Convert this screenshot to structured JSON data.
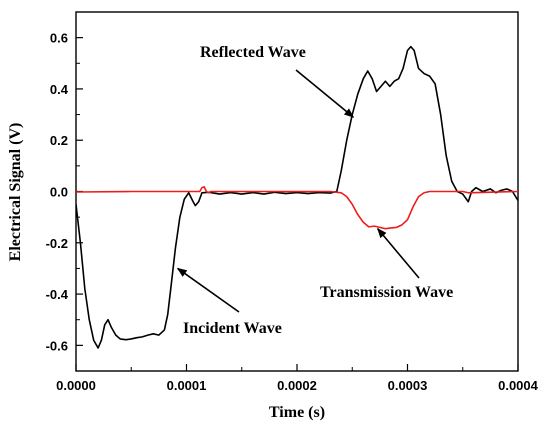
{
  "chart_data": {
    "type": "line",
    "title": "",
    "xlabel": "Time (s)",
    "ylabel": "Electrical Signal (V)",
    "xlim": [
      0,
      0.0004
    ],
    "ylim": [
      -0.7,
      0.7
    ],
    "grid": false,
    "legend": "none",
    "x_ticks": [
      0,
      0.0001,
      0.0002,
      0.0003,
      0.0004
    ],
    "x_tick_labels": [
      "0.0000",
      "0.0001",
      "0.0002",
      "0.0003",
      "0.0004"
    ],
    "y_ticks": [
      -0.6,
      -0.4,
      -0.2,
      0.0,
      0.2,
      0.4,
      0.6
    ],
    "y_tick_labels": [
      "-0.6",
      "-0.4",
      "-0.2",
      "0.0",
      "0.2",
      "0.4",
      "0.6"
    ],
    "series": [
      {
        "color": "#000000",
        "points": [
          [
            0,
            -0.05
          ],
          [
            4e-06,
            -0.2
          ],
          [
            8e-06,
            -0.38
          ],
          [
            1.2e-05,
            -0.5
          ],
          [
            1.6e-05,
            -0.58
          ],
          [
            2e-05,
            -0.61
          ],
          [
            2.3e-05,
            -0.58
          ],
          [
            2.6e-05,
            -0.52
          ],
          [
            2.9e-05,
            -0.5
          ],
          [
            3.2e-05,
            -0.53
          ],
          [
            3.6e-05,
            -0.56
          ],
          [
            4e-05,
            -0.575
          ],
          [
            4.5e-05,
            -0.578
          ],
          [
            5e-05,
            -0.575
          ],
          [
            5.5e-05,
            -0.57
          ],
          [
            6e-05,
            -0.567
          ],
          [
            6.5e-05,
            -0.56
          ],
          [
            7e-05,
            -0.555
          ],
          [
            7.5e-05,
            -0.56
          ],
          [
            8e-05,
            -0.54
          ],
          [
            8.3e-05,
            -0.48
          ],
          [
            8.6e-05,
            -0.37
          ],
          [
            9e-05,
            -0.22
          ],
          [
            9.4e-05,
            -0.1
          ],
          [
            9.8e-05,
            -0.03
          ],
          [
            0.000102,
            -0.005
          ],
          [
            0.000106,
            -0.04
          ],
          [
            0.000108,
            -0.055
          ],
          [
            0.000111,
            -0.04
          ],
          [
            0.000114,
            -0.005
          ],
          [
            0.00012,
            -0.003
          ],
          [
            0.00013,
            -0.01
          ],
          [
            0.00014,
            -0.004
          ],
          [
            0.00015,
            -0.01
          ],
          [
            0.00016,
            -0.004
          ],
          [
            0.00017,
            -0.01
          ],
          [
            0.00018,
            -0.003
          ],
          [
            0.00019,
            -0.008
          ],
          [
            0.0002,
            -0.004
          ],
          [
            0.00021,
            -0.008
          ],
          [
            0.00022,
            -0.004
          ],
          [
            0.00023,
            -0.006
          ],
          [
            0.000236,
            0.0
          ],
          [
            0.00024,
            0.08
          ],
          [
            0.000245,
            0.2
          ],
          [
            0.00025,
            0.3
          ],
          [
            0.000255,
            0.38
          ],
          [
            0.00026,
            0.44
          ],
          [
            0.000264,
            0.47
          ],
          [
            0.000268,
            0.44
          ],
          [
            0.000272,
            0.39
          ],
          [
            0.000276,
            0.41
          ],
          [
            0.00028,
            0.43
          ],
          [
            0.000284,
            0.41
          ],
          [
            0.000288,
            0.43
          ],
          [
            0.000292,
            0.44
          ],
          [
            0.000296,
            0.48
          ],
          [
            0.0003,
            0.55
          ],
          [
            0.000303,
            0.565
          ],
          [
            0.000306,
            0.55
          ],
          [
            0.00031,
            0.48
          ],
          [
            0.000315,
            0.46
          ],
          [
            0.00032,
            0.45
          ],
          [
            0.000325,
            0.42
          ],
          [
            0.00033,
            0.3
          ],
          [
            0.000335,
            0.14
          ],
          [
            0.00034,
            0.04
          ],
          [
            0.000345,
            0.0
          ],
          [
            0.00035,
            -0.01
          ],
          [
            0.000355,
            -0.04
          ],
          [
            0.000358,
            0.0
          ],
          [
            0.000362,
            0.015
          ],
          [
            0.000368,
            0.0
          ],
          [
            0.000375,
            0.01
          ],
          [
            0.00038,
            -0.005
          ],
          [
            0.000385,
            0.005
          ],
          [
            0.00039,
            0.01
          ],
          [
            0.000395,
            0.0
          ],
          [
            0.0004,
            -0.035
          ]
        ]
      },
      {
        "color": "#ee1c1c",
        "points": [
          [
            0,
            -0.002
          ],
          [
            5e-05,
            0.0
          ],
          [
            0.0001,
            0.0
          ],
          [
            0.000112,
            0.0
          ],
          [
            0.000114,
            0.015
          ],
          [
            0.000116,
            0.018
          ],
          [
            0.000118,
            0.0
          ],
          [
            0.00012,
            -0.005
          ],
          [
            0.000122,
            0.0
          ],
          [
            0.00018,
            0.0
          ],
          [
            0.00023,
            0.0
          ],
          [
            0.00024,
            -0.005
          ],
          [
            0.000245,
            -0.02
          ],
          [
            0.00025,
            -0.05
          ],
          [
            0.000255,
            -0.09
          ],
          [
            0.00026,
            -0.12
          ],
          [
            0.000265,
            -0.138
          ],
          [
            0.00027,
            -0.135
          ],
          [
            0.000275,
            -0.14
          ],
          [
            0.00028,
            -0.145
          ],
          [
            0.000285,
            -0.142
          ],
          [
            0.00029,
            -0.14
          ],
          [
            0.000295,
            -0.13
          ],
          [
            0.0003,
            -0.11
          ],
          [
            0.000305,
            -0.06
          ],
          [
            0.00031,
            -0.02
          ],
          [
            0.000315,
            -0.005
          ],
          [
            0.00032,
            0.0
          ],
          [
            0.00035,
            0.0
          ],
          [
            0.000355,
            -0.005
          ],
          [
            0.0004,
            0.0
          ]
        ]
      }
    ],
    "annotations": [
      {
        "text": "Reflected Wave",
        "arrow_to": [
          0.000251,
          0.29
        ]
      },
      {
        "text": "Incident Wave",
        "arrow_to": [
          9.2e-05,
          -0.3
        ]
      },
      {
        "text": "Transmission  Wave",
        "arrow_to": [
          0.000273,
          -0.145
        ]
      }
    ]
  }
}
